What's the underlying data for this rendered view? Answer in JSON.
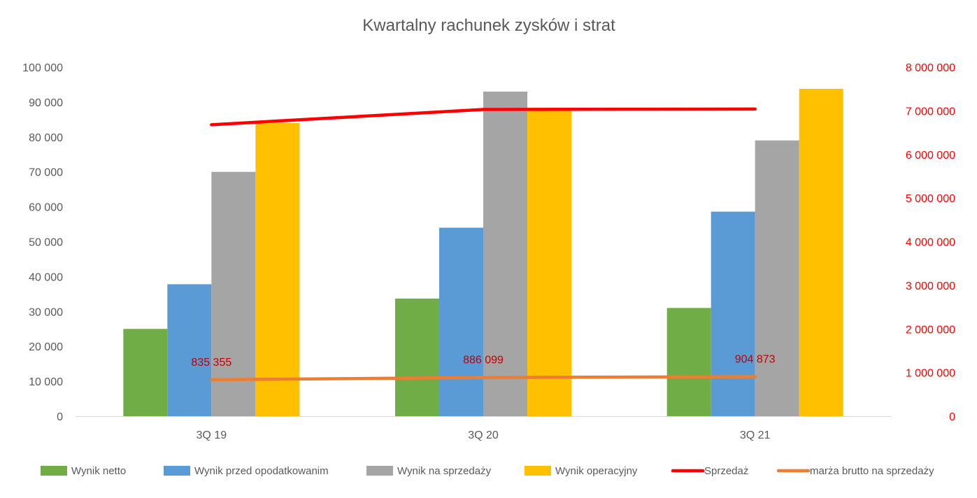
{
  "chart_data": {
    "type": "bar",
    "title": "Kwartalny rachunek zysków i strat",
    "categories": [
      "3Q 19",
      "3Q 20",
      "3Q 21"
    ],
    "y_axis_left": {
      "ylim": [
        0,
        100000
      ],
      "ticks": [
        0,
        10000,
        20000,
        30000,
        40000,
        50000,
        60000,
        70000,
        80000,
        90000,
        100000
      ],
      "tick_labels": [
        "0",
        "10 000",
        "20 000",
        "30 000",
        "40 000",
        "50 000",
        "60 000",
        "70 000",
        "80 000",
        "90 000",
        "100 000"
      ]
    },
    "y_axis_right": {
      "ylim": [
        0,
        8000000
      ],
      "ticks": [
        0,
        1000000,
        2000000,
        3000000,
        4000000,
        5000000,
        6000000,
        7000000,
        8000000
      ],
      "tick_labels": [
        "0",
        "1 000 000",
        "2 000 000",
        "3 000 000",
        "4 000 000",
        "5 000 000",
        "6 000 000",
        "7 000 000",
        "8 000 000"
      ],
      "color": "#ff0000"
    },
    "grid": false,
    "legend_position": "bottom",
    "bar_series": [
      {
        "name": "Wynik netto",
        "color": "#70ad47",
        "values": [
          25000,
          33700,
          31000
        ]
      },
      {
        "name": "Wynik przed opodatkowanim",
        "color": "#5b9bd5",
        "values": [
          37800,
          54000,
          58600
        ]
      },
      {
        "name": "Wynik na sprzedaży",
        "color": "#a5a5a5",
        "values": [
          70000,
          93000,
          79000
        ]
      },
      {
        "name": "Wynik operacyjny",
        "color": "#ffc000",
        "values": [
          84000,
          88000,
          93800
        ]
      }
    ],
    "line_series": [
      {
        "name": "Sprzedaż",
        "color": "#ff0000",
        "axis": "right",
        "values": [
          6680000,
          7030000,
          7040000
        ]
      },
      {
        "name": "marża brutto na sprzedaży",
        "color": "#ed7d31",
        "axis": "right",
        "values": [
          835355,
          886099,
          904873
        ],
        "data_labels": [
          "835 355",
          "886 099",
          "904 873"
        ],
        "label_color": "#c00000"
      }
    ]
  }
}
